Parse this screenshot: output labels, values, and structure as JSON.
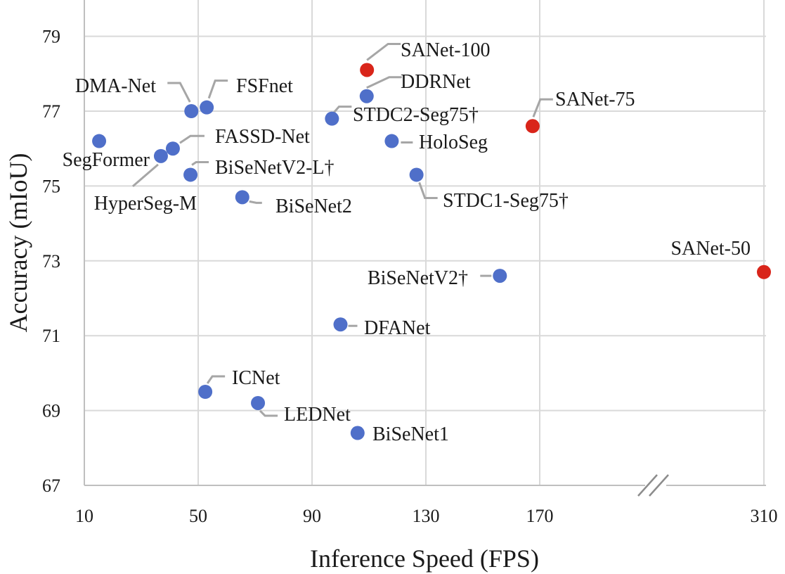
{
  "chart_data": {
    "type": "scatter",
    "xlabel": "Inference Speed (FPS)",
    "ylabel": "Accuracy (mIoU)",
    "x_ticks": [
      "10",
      "50",
      "90",
      "130",
      "170",
      "310"
    ],
    "y_ticks": [
      "67",
      "69",
      "71",
      "73",
      "75",
      "77",
      "79"
    ],
    "ylim": [
      67,
      80
    ],
    "x_axis_break": "between 170 and 310",
    "grid": true,
    "colors": {
      "baseline": "#4f6fc9",
      "proposed": "#d9251a"
    },
    "points": [
      {
        "label": "SANet-100",
        "x": 109.3,
        "y": 78.1,
        "group": "proposed"
      },
      {
        "label": "DDRNet",
        "x": 109.2,
        "y": 77.4,
        "group": "baseline"
      },
      {
        "label": "DMA-Net",
        "x": 47.6,
        "y": 77.0,
        "group": "baseline"
      },
      {
        "label": "FSFnet",
        "x": 53.0,
        "y": 77.1,
        "group": "baseline"
      },
      {
        "label": "STDC2-Seg75†",
        "x": 97.0,
        "y": 76.8,
        "group": "baseline"
      },
      {
        "label": "SANet-75",
        "x": 167.5,
        "y": 76.6,
        "group": "proposed"
      },
      {
        "label": "SegFormer",
        "x": 15.2,
        "y": 76.2,
        "group": "baseline"
      },
      {
        "label": "FASSD-Net",
        "x": 41.1,
        "y": 76.0,
        "group": "baseline"
      },
      {
        "label": "HyperSeg-M",
        "x": 36.9,
        "y": 75.8,
        "group": "baseline"
      },
      {
        "label": "HoloSeg",
        "x": 118.0,
        "y": 76.2,
        "group": "baseline"
      },
      {
        "label": "BiSeNetV2-L†",
        "x": 47.3,
        "y": 75.3,
        "group": "baseline"
      },
      {
        "label": "STDC1-Seg75†",
        "x": 126.7,
        "y": 75.3,
        "group": "baseline"
      },
      {
        "label": "BiSeNet2",
        "x": 65.5,
        "y": 74.7,
        "group": "baseline"
      },
      {
        "label": "SANet-50",
        "x": 310.0,
        "y": 72.7,
        "group": "proposed"
      },
      {
        "label": "BiSeNetV2†",
        "x": 156.0,
        "y": 72.6,
        "group": "baseline"
      },
      {
        "label": "DFANet",
        "x": 100.0,
        "y": 71.3,
        "group": "baseline"
      },
      {
        "label": "ICNet",
        "x": 52.5,
        "y": 69.5,
        "group": "baseline"
      },
      {
        "label": "LEDNet",
        "x": 71.0,
        "y": 69.2,
        "group": "baseline"
      },
      {
        "label": "BiSeNet1",
        "x": 106.0,
        "y": 68.4,
        "group": "baseline"
      }
    ]
  }
}
